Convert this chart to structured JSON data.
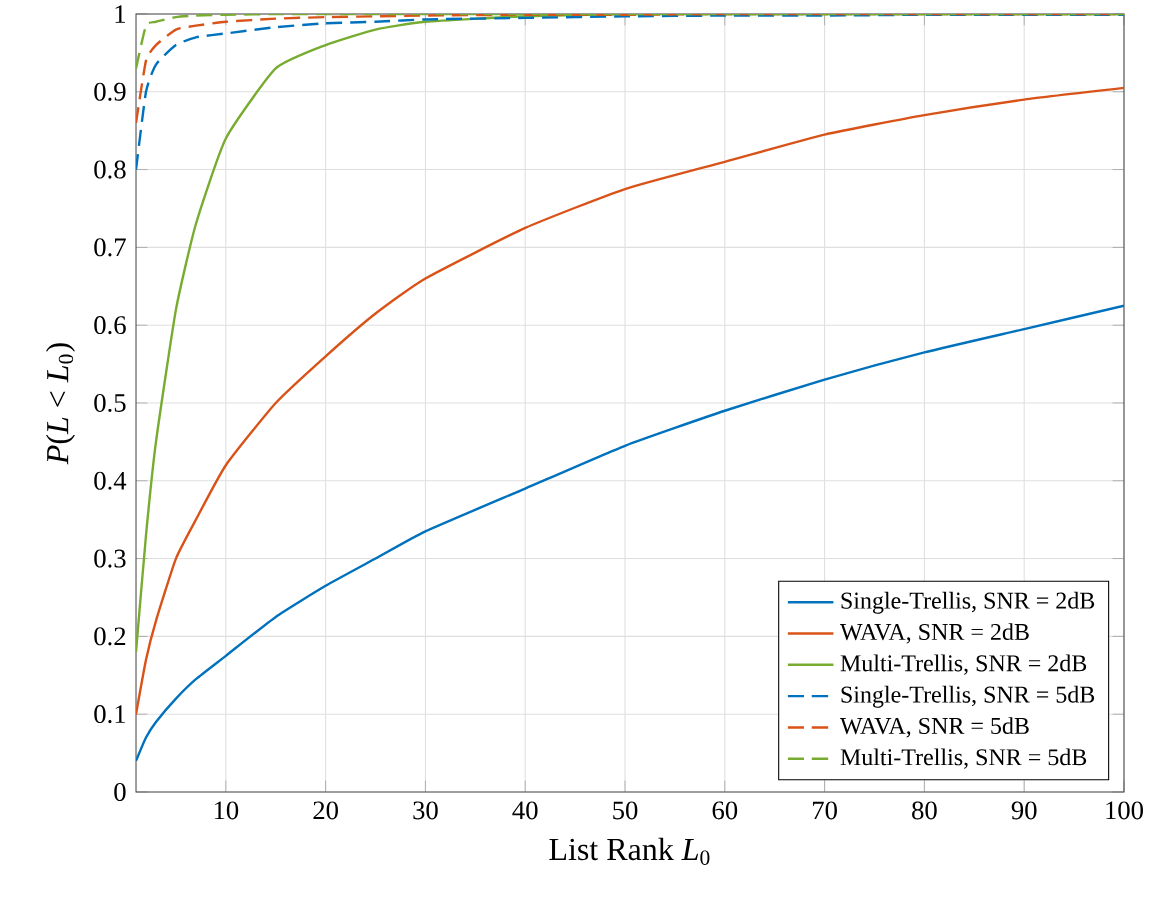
{
  "chart_data": {
    "type": "line",
    "xlabel": "List Rank *L*$_{0}$",
    "ylabel": "*P*(*L* < *L*$_{0}$)",
    "x": [
      1,
      2,
      3,
      5,
      7,
      10,
      15,
      20,
      25,
      30,
      40,
      50,
      60,
      70,
      80,
      90,
      100
    ],
    "series": [
      {
        "name": "Single-Trellis, SNR = 2dB",
        "color": "#0072bd",
        "line_style": "solid",
        "values": [
          0.04,
          0.07,
          0.09,
          0.12,
          0.145,
          0.175,
          0.225,
          0.265,
          0.3,
          0.335,
          0.39,
          0.445,
          0.49,
          0.53,
          0.565,
          0.595,
          0.625
        ]
      },
      {
        "name": "WAVA, SNR = 2dB",
        "color": "#d95319",
        "line_style": "solid",
        "values": [
          0.1,
          0.17,
          0.22,
          0.3,
          0.35,
          0.42,
          0.5,
          0.56,
          0.615,
          0.66,
          0.725,
          0.775,
          0.81,
          0.845,
          0.87,
          0.89,
          0.905
        ]
      },
      {
        "name": "Multi-Trellis, SNR = 2dB",
        "color": "#77ac30",
        "line_style": "solid",
        "values": [
          0.18,
          0.33,
          0.45,
          0.62,
          0.73,
          0.84,
          0.93,
          0.96,
          0.98,
          0.99,
          0.997,
          1.0,
          1.0,
          1.0,
          1.0,
          1.0,
          1.0
        ]
      },
      {
        "name": "Single-Trellis, SNR = 5dB",
        "color": "#0072bd",
        "line_style": "dashed",
        "values": [
          0.8,
          0.9,
          0.935,
          0.96,
          0.97,
          0.975,
          0.983,
          0.988,
          0.99,
          0.993,
          0.995,
          0.997,
          0.998,
          0.998,
          0.999,
          0.999,
          0.999
        ]
      },
      {
        "name": "WAVA, SNR = 5dB",
        "color": "#d95319",
        "line_style": "dashed",
        "values": [
          0.86,
          0.94,
          0.96,
          0.98,
          0.985,
          0.99,
          0.994,
          0.996,
          0.997,
          0.998,
          0.999,
          0.999,
          1.0,
          1.0,
          1.0,
          1.0,
          1.0
        ]
      },
      {
        "name": "Multi-Trellis, SNR = 5dB",
        "color": "#77ac30",
        "line_style": "dashed",
        "values": [
          0.93,
          0.985,
          0.99,
          0.996,
          0.998,
          0.999,
          1.0,
          1.0,
          1.0,
          1.0,
          1.0,
          1.0,
          1.0,
          1.0,
          1.0,
          1.0,
          1.0
        ]
      }
    ],
    "xlim": [
      1,
      100
    ],
    "ylim": [
      0,
      1
    ],
    "xticks": [
      10,
      20,
      30,
      40,
      50,
      60,
      70,
      80,
      90,
      100
    ],
    "yticks": [
      0,
      0.1,
      0.2,
      0.3,
      0.4,
      0.5,
      0.6,
      0.7,
      0.8,
      0.9,
      1
    ],
    "grid": true,
    "legend": "bottom right"
  }
}
